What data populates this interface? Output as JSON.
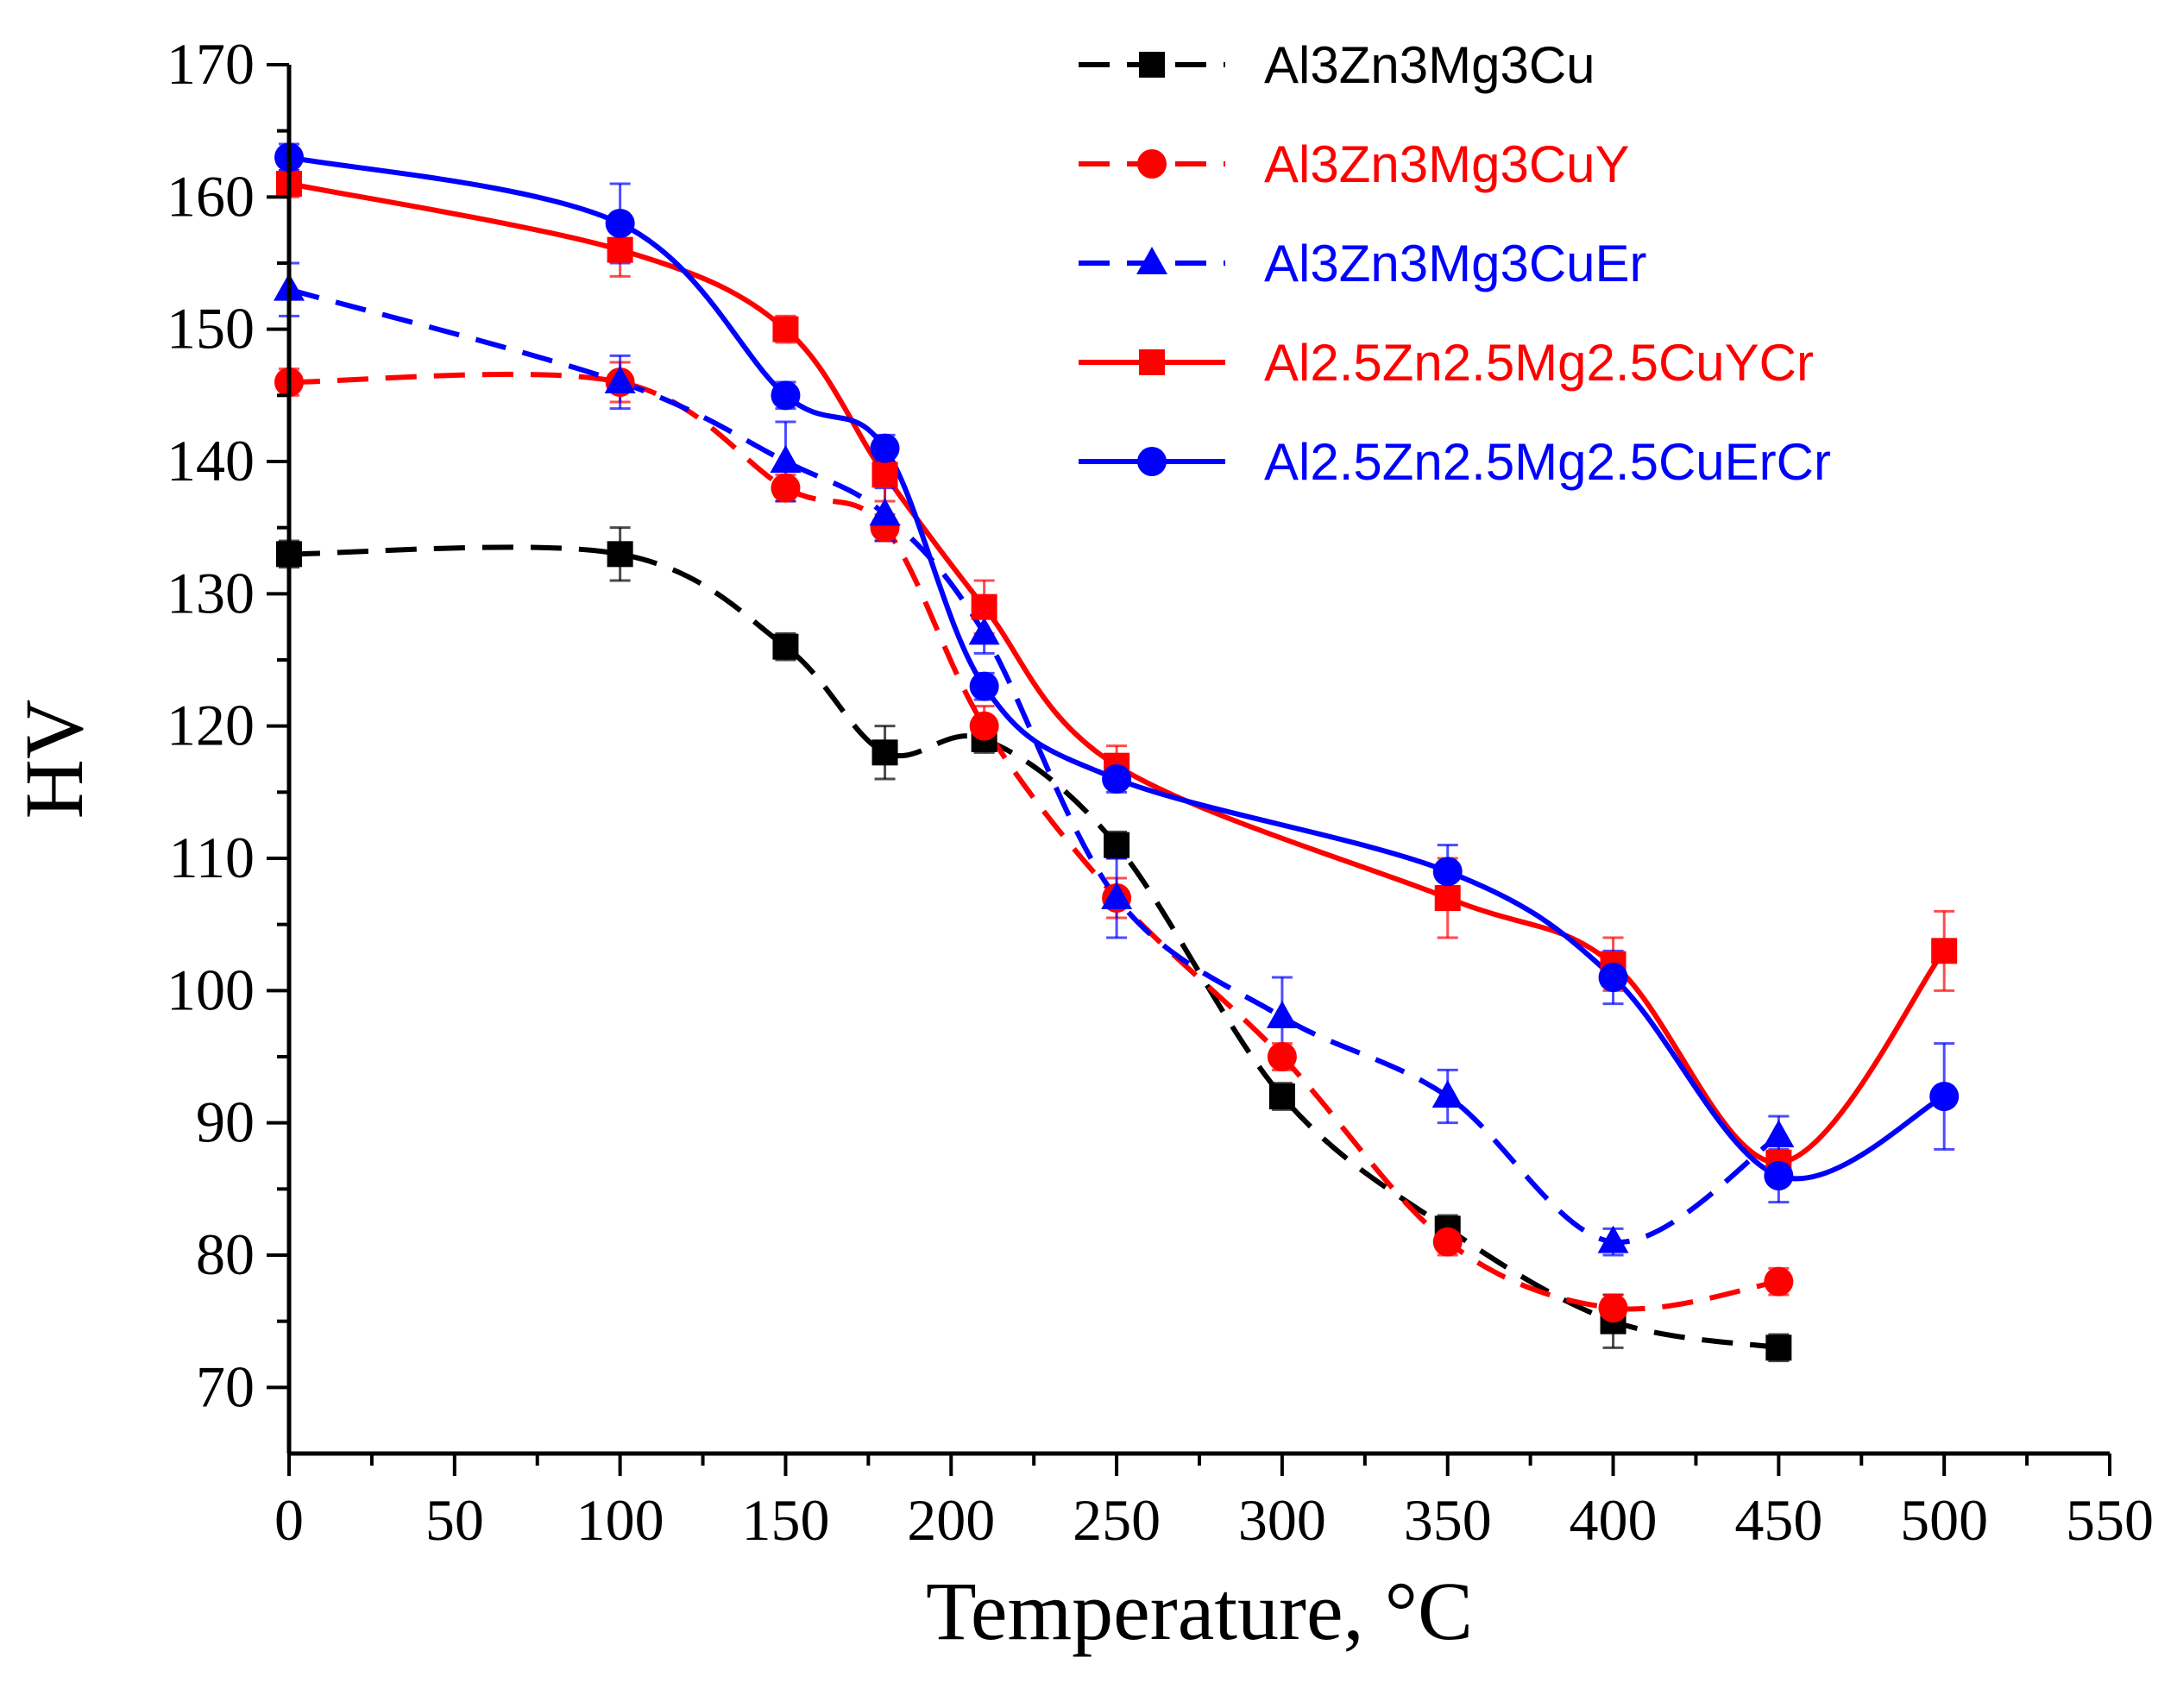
{
  "chart_data": {
    "type": "line",
    "title": "",
    "xlabel": "Temperature, °C",
    "ylabel": "HV",
    "xlim": [
      0,
      550
    ],
    "ylim": [
      65,
      170
    ],
    "xticks": [
      0,
      50,
      100,
      150,
      200,
      250,
      300,
      350,
      400,
      450,
      500,
      550
    ],
    "yticks": [
      70,
      80,
      90,
      100,
      110,
      120,
      130,
      140,
      150,
      160,
      170
    ],
    "grid": false,
    "legend_position": "top-right",
    "series": [
      {
        "name": "Al3Zn3Mg3Cu",
        "color": "#000000",
        "line": "dashed",
        "marker": "square",
        "x": [
          0,
          100,
          150,
          180,
          210,
          250,
          300,
          350,
          400,
          450
        ],
        "values": [
          133,
          133,
          126,
          118,
          119,
          111,
          92,
          82,
          75,
          73
        ],
        "errors": [
          1,
          2,
          1,
          2,
          1,
          1,
          1,
          1,
          2,
          1
        ]
      },
      {
        "name": "Al3Zn3Mg3CuY",
        "color": "#ff0000",
        "line": "dashed",
        "marker": "circle",
        "x": [
          0,
          100,
          150,
          180,
          210,
          250,
          300,
          350,
          400,
          450
        ],
        "values": [
          146,
          146,
          138,
          135,
          120,
          107,
          95,
          81,
          76,
          78
        ],
        "errors": [
          1,
          1.5,
          1,
          1,
          1.5,
          1.5,
          1,
          1,
          1,
          1
        ]
      },
      {
        "name": "Al3Zn3Mg3CuEr",
        "color": "#0000ff",
        "line": "dashed",
        "marker": "triangle",
        "x": [
          0,
          100,
          150,
          180,
          210,
          250,
          300,
          350,
          400,
          450
        ],
        "values": [
          153,
          146,
          140,
          136,
          127,
          107,
          98,
          92,
          81,
          89
        ],
        "errors": [
          2,
          2,
          3,
          2,
          1.5,
          3,
          3,
          2,
          1,
          1.5
        ]
      },
      {
        "name": "Al2.5Zn2.5Mg2.5CuYCr",
        "color": "#ff0000",
        "line": "solid",
        "marker": "square",
        "x": [
          0,
          100,
          150,
          180,
          210,
          250,
          350,
          400,
          450,
          500
        ],
        "values": [
          161,
          156,
          150,
          139,
          129,
          117,
          107,
          102,
          87,
          103
        ],
        "errors": [
          1,
          2,
          1,
          2,
          2,
          1.5,
          3,
          2,
          1.5,
          3
        ]
      },
      {
        "name": "Al2.5Zn2.5Mg2.5CuErCr",
        "color": "#0000ff",
        "line": "solid",
        "marker": "circle",
        "x": [
          0,
          100,
          150,
          180,
          210,
          250,
          350,
          400,
          450,
          500
        ],
        "values": [
          163,
          158,
          145,
          141,
          123,
          116,
          109,
          101,
          86,
          92
        ],
        "errors": [
          1,
          3,
          1,
          1,
          1,
          1,
          2,
          2,
          2,
          4
        ]
      }
    ]
  }
}
